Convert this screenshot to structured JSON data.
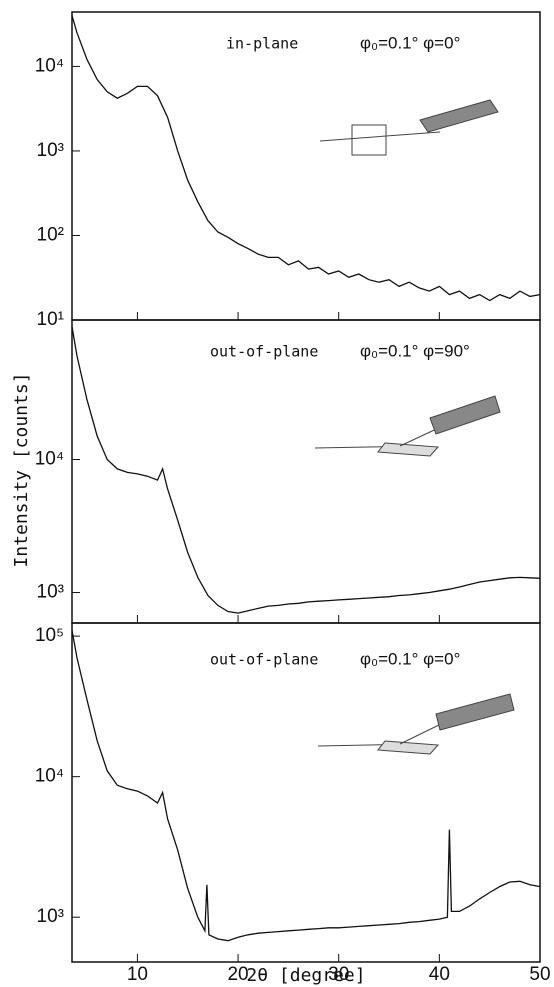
{
  "chart_data": [
    {
      "type": "line",
      "log_y": true,
      "annotation": "in-plane",
      "annotation2": "φ₀=0.1° φ=0°",
      "color": "#111",
      "xlim": [
        3.5,
        50
      ],
      "ylim": [
        10,
        44000
      ],
      "yticks": [
        {
          "value": 10,
          "label": "10¹"
        },
        {
          "value": 100,
          "label": "10²"
        },
        {
          "value": 1000,
          "label": "10³"
        },
        {
          "value": 10000,
          "label": "10⁴"
        }
      ],
      "x": [
        3.5,
        4,
        5,
        6,
        7,
        8,
        9,
        10,
        11,
        12,
        13,
        14,
        15,
        16,
        17,
        18,
        19,
        20,
        21,
        22,
        23,
        24,
        25,
        26,
        27,
        28,
        29,
        30,
        31,
        32,
        33,
        34,
        35,
        36,
        37,
        38,
        39,
        40,
        41,
        42,
        43,
        44,
        45,
        46,
        47,
        48,
        49,
        50
      ],
      "values": [
        40000,
        25000,
        12000,
        7000,
        5000,
        4200,
        4800,
        5800,
        5800,
        4500,
        2500,
        1000,
        450,
        250,
        150,
        110,
        95,
        80,
        70,
        60,
        55,
        55,
        45,
        50,
        40,
        42,
        35,
        38,
        32,
        35,
        30,
        28,
        30,
        25,
        28,
        24,
        22,
        25,
        20,
        22,
        18,
        20,
        17,
        20,
        18,
        22,
        19,
        20
      ]
    },
    {
      "type": "line",
      "log_y": true,
      "annotation": "out-of-plane",
      "annotation2": "φ₀=0.1° φ=90°",
      "color": "#111",
      "y_label": "Intensity [counts]",
      "xlim": [
        3.5,
        50
      ],
      "ylim": [
        590,
        112000
      ],
      "yticks": [
        {
          "value": 1000,
          "label": "10³"
        },
        {
          "value": 10000,
          "label": "10⁴"
        }
      ],
      "x": [
        3.5,
        4,
        5,
        6,
        7,
        8,
        9,
        10,
        11,
        12,
        12.5,
        13,
        14,
        15,
        16,
        17,
        18,
        19,
        20,
        21,
        22,
        23,
        24,
        25,
        26,
        27,
        28,
        29,
        30,
        31,
        32,
        33,
        34,
        35,
        36,
        37,
        38,
        39,
        40,
        41,
        42,
        43,
        44,
        45,
        46,
        47,
        48,
        49,
        50
      ],
      "values": [
        100000,
        60000,
        28000,
        15000,
        10000,
        8500,
        8000,
        7800,
        7500,
        7000,
        8500,
        6000,
        3500,
        2000,
        1300,
        950,
        800,
        720,
        700,
        730,
        760,
        790,
        800,
        820,
        830,
        850,
        860,
        870,
        880,
        890,
        900,
        910,
        920,
        930,
        950,
        960,
        980,
        1000,
        1030,
        1060,
        1100,
        1150,
        1200,
        1230,
        1260,
        1290,
        1300,
        1290,
        1280
      ]
    },
    {
      "type": "line",
      "log_y": true,
      "annotation": "out-of-plane",
      "annotation2": "φ₀=0.1° φ=0°",
      "color": "#111",
      "x_label": "2θ [degree]",
      "xlim": [
        3.5,
        50
      ],
      "ylim": [
        480,
        124000
      ],
      "xticks": [
        10,
        20,
        30,
        40,
        50
      ],
      "yticks": [
        {
          "value": 1000,
          "label": "10³"
        },
        {
          "value": 10000,
          "label": "10⁴"
        },
        {
          "value": 100000,
          "label": "10⁵"
        }
      ],
      "x": [
        3.5,
        4,
        5,
        6,
        7,
        8,
        9,
        10,
        11,
        12,
        12.5,
        13,
        14,
        15,
        16,
        16.7,
        16.9,
        17.1,
        18,
        19,
        20,
        21,
        22,
        23,
        24,
        25,
        26,
        27,
        28,
        29,
        30,
        31,
        32,
        33,
        34,
        35,
        36,
        37,
        38,
        39,
        40,
        40.8,
        41,
        41.2,
        42,
        43,
        44,
        45,
        46,
        47,
        48,
        49,
        50
      ],
      "values": [
        110000,
        70000,
        35000,
        18000,
        11000,
        8700,
        8200,
        7900,
        7300,
        6500,
        7700,
        5000,
        3000,
        1600,
        1000,
        800,
        1700,
        750,
        700,
        680,
        720,
        750,
        770,
        780,
        790,
        800,
        810,
        820,
        830,
        840,
        840,
        850,
        860,
        870,
        880,
        890,
        900,
        920,
        930,
        950,
        970,
        1000,
        4200,
        1100,
        1100,
        1200,
        1350,
        1500,
        1650,
        1780,
        1800,
        1700,
        1650
      ]
    }
  ]
}
